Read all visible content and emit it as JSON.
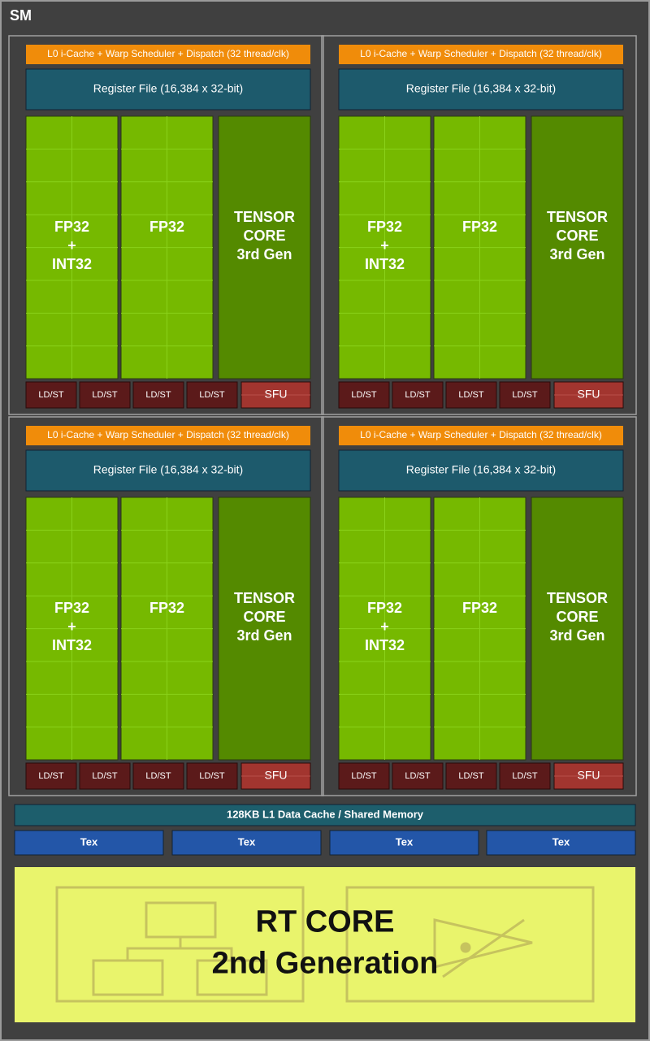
{
  "title": "SM",
  "partitions": [
    {
      "scheduler": "L0 i-Cache + Warp Scheduler + Dispatch (32 thread/clk)",
      "register_file": "Register File (16,384 x 32-bit)",
      "fp32_int32": [
        "FP32",
        "+",
        "INT32"
      ],
      "fp32": [
        "FP32"
      ],
      "tensor_core": [
        "TENSOR",
        "CORE",
        "3rd Gen"
      ],
      "units": [
        "LD/ST",
        "LD/ST",
        "LD/ST",
        "LD/ST",
        "SFU"
      ]
    },
    {
      "scheduler": "L0 i-Cache + Warp Scheduler + Dispatch (32 thread/clk)",
      "register_file": "Register File (16,384 x 32-bit)",
      "fp32_int32": [
        "FP32",
        "+",
        "INT32"
      ],
      "fp32": [
        "FP32"
      ],
      "tensor_core": [
        "TENSOR",
        "CORE",
        "3rd Gen"
      ],
      "units": [
        "LD/ST",
        "LD/ST",
        "LD/ST",
        "LD/ST",
        "SFU"
      ]
    },
    {
      "scheduler": "L0 i-Cache + Warp Scheduler + Dispatch (32 thread/clk)",
      "register_file": "Register File (16,384 x 32-bit)",
      "fp32_int32": [
        "FP32",
        "+",
        "INT32"
      ],
      "fp32": [
        "FP32"
      ],
      "tensor_core": [
        "TENSOR",
        "CORE",
        "3rd Gen"
      ],
      "units": [
        "LD/ST",
        "LD/ST",
        "LD/ST",
        "LD/ST",
        "SFU"
      ]
    },
    {
      "scheduler": "L0 i-Cache + Warp Scheduler + Dispatch (32 thread/clk)",
      "register_file": "Register File (16,384 x 32-bit)",
      "fp32_int32": [
        "FP32",
        "+",
        "INT32"
      ],
      "fp32": [
        "FP32"
      ],
      "tensor_core": [
        "TENSOR",
        "CORE",
        "3rd Gen"
      ],
      "units": [
        "LD/ST",
        "LD/ST",
        "LD/ST",
        "LD/ST",
        "SFU"
      ]
    }
  ],
  "l1_cache": "128KB L1 Data Cache / Shared Memory",
  "tex": [
    "Tex",
    "Tex",
    "Tex",
    "Tex"
  ],
  "rt_core": [
    "RT CORE",
    "2nd Generation"
  ]
}
